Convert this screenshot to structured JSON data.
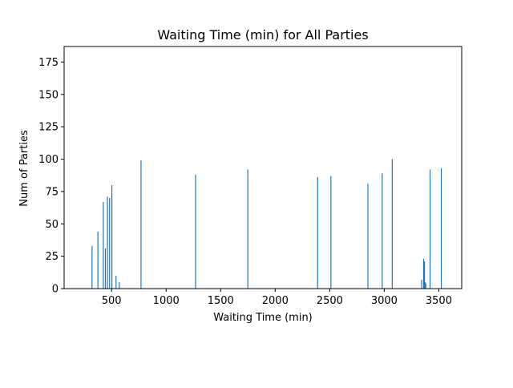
{
  "chart_data": {
    "type": "bar",
    "title": "Waiting Time (min) for All Parties",
    "xlabel": "Waiting Time (min)",
    "ylabel": "Num of Parties",
    "xlim": [
      65,
      3710
    ],
    "ylim": [
      0,
      187
    ],
    "xticks": [
      500,
      1000,
      1500,
      2000,
      2500,
      3000,
      3500
    ],
    "yticks": [
      0,
      25,
      50,
      75,
      100,
      125,
      150,
      175
    ],
    "bar_color": "#1f77b4",
    "grid": false,
    "series": [
      {
        "x": [
          321,
          375,
          424,
          443,
          462,
          482,
          503,
          541,
          571,
          770,
          1270,
          1749,
          2389,
          2511,
          2850,
          2981,
          3073,
          3343,
          3361,
          3369,
          3374,
          3381,
          3420,
          3523
        ],
        "values": [
          33,
          44,
          67,
          31,
          71,
          70,
          80,
          10,
          5,
          99,
          88,
          92,
          86,
          87,
          81,
          89,
          100,
          7,
          23,
          21,
          5,
          4,
          92,
          93
        ]
      }
    ]
  }
}
